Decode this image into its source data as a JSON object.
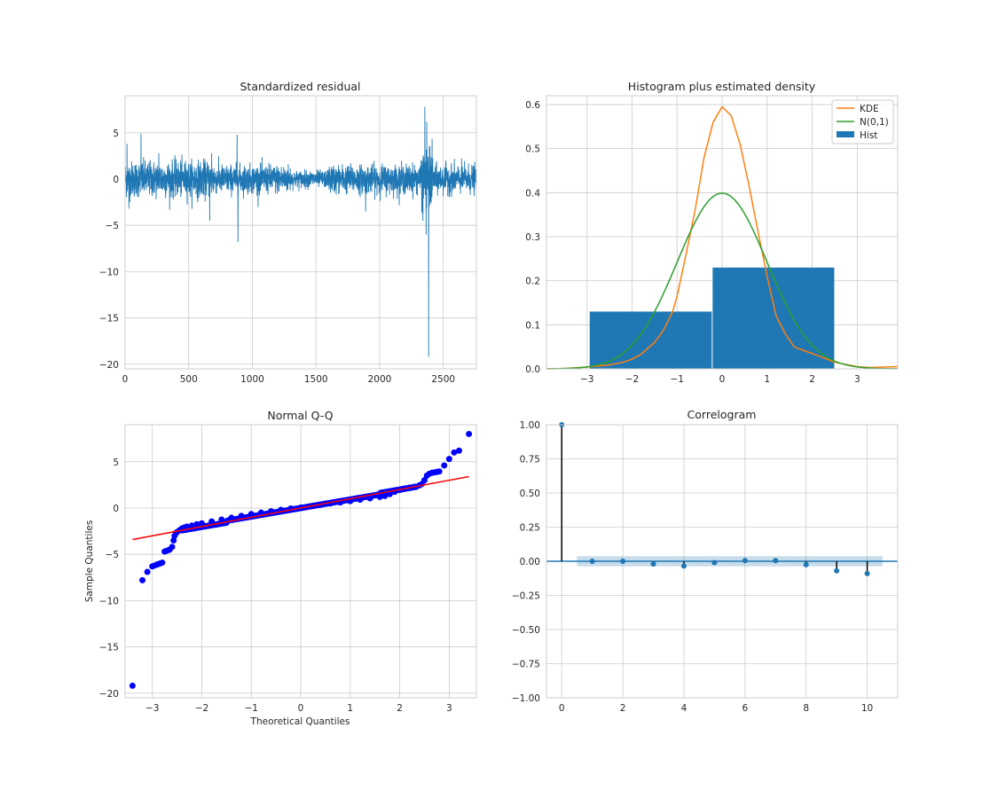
{
  "chart_data": [
    {
      "id": "resid",
      "type": "line",
      "title": "Standardized residual",
      "xlabel": "",
      "ylabel": "",
      "xlim": [
        0,
        2760
      ],
      "ylim": [
        -20.5,
        9
      ],
      "xticks": [
        0,
        500,
        1000,
        1500,
        2000,
        2500
      ],
      "xtick_labels": [
        "0",
        "500",
        "1000",
        "1500",
        "2000",
        "2500"
      ],
      "yticks": [
        5,
        0,
        -5,
        -10,
        -15,
        -20
      ],
      "ytick_labels": [
        "5",
        "0",
        "−5",
        "−10",
        "−15",
        "−20"
      ],
      "grid": true,
      "series": [
        {
          "color": "#1f77b4",
          "n_points": 2760,
          "typical_amplitude": 1.0,
          "spikes": [
            {
              "x": 15,
              "y": 3.8
            },
            {
              "x": 30,
              "y": -3.2
            },
            {
              "x": 125,
              "y": 4.9
            },
            {
              "x": 265,
              "y": 2.8
            },
            {
              "x": 665,
              "y": -4.5
            },
            {
              "x": 680,
              "y": 2.8
            },
            {
              "x": 880,
              "y": 4.8
            },
            {
              "x": 887,
              "y": -6.8
            },
            {
              "x": 1890,
              "y": -3.5
            },
            {
              "x": 2340,
              "y": -4.5
            },
            {
              "x": 2355,
              "y": 7.8
            },
            {
              "x": 2365,
              "y": -6.0
            },
            {
              "x": 2370,
              "y": 6.2
            },
            {
              "x": 2385,
              "y": -19.2
            },
            {
              "x": 2395,
              "y": 3.5
            }
          ]
        }
      ]
    },
    {
      "id": "hist",
      "type": "bar",
      "title": "Histogram plus estimated density",
      "xlabel": "",
      "ylabel": "",
      "xlim": [
        -3.9,
        3.9
      ],
      "ylim": [
        0,
        0.62
      ],
      "xticks": [
        -3,
        -2,
        -1,
        0,
        1,
        2,
        3
      ],
      "xtick_labels": [
        "−3",
        "−2",
        "−1",
        "0",
        "1",
        "2",
        "3"
      ],
      "yticks": [
        0.0,
        0.1,
        0.2,
        0.3,
        0.4,
        0.5,
        0.6
      ],
      "ytick_labels": [
        "0.0",
        "0.1",
        "0.2",
        "0.3",
        "0.4",
        "0.5",
        "0.6"
      ],
      "grid": true,
      "legend_position": "top-right",
      "bars": {
        "name": "Hist",
        "color": "#1f77b4",
        "bins": [
          {
            "x0": -2.95,
            "x1": -0.22,
            "height": 0.13
          },
          {
            "x0": -0.22,
            "x1": 2.5,
            "height": 0.23
          }
        ]
      },
      "series": [
        {
          "name": "KDE",
          "color": "#ff7f0e",
          "x": [
            -3.9,
            -3.5,
            -3.0,
            -2.8,
            -2.5,
            -2.2,
            -2.0,
            -1.8,
            -1.5,
            -1.3,
            -1.1,
            -1.0,
            -0.8,
            -0.6,
            -0.4,
            -0.2,
            0.0,
            0.1,
            0.2,
            0.4,
            0.6,
            0.8,
            1.0,
            1.2,
            1.4,
            1.6,
            1.8,
            2.0,
            2.2,
            2.5,
            2.8,
            3.0,
            3.3,
            3.6,
            3.9
          ],
          "y": [
            0.0,
            0.001,
            0.004,
            0.006,
            0.009,
            0.015,
            0.022,
            0.033,
            0.06,
            0.088,
            0.13,
            0.165,
            0.26,
            0.36,
            0.48,
            0.56,
            0.595,
            0.585,
            0.575,
            0.51,
            0.415,
            0.31,
            0.21,
            0.12,
            0.08,
            0.05,
            0.042,
            0.035,
            0.027,
            0.015,
            0.009,
            0.005,
            0.003,
            0.004,
            0.005
          ]
        },
        {
          "name": "N(0,1)",
          "color": "#2ca02c",
          "distribution": "normal",
          "mean": 0,
          "sd": 1
        }
      ]
    },
    {
      "id": "qq",
      "type": "scatter",
      "title": "Normal Q-Q",
      "xlabel": "Theoretical Quantiles",
      "ylabel": "Sample Quantiles",
      "xlim": [
        -3.55,
        3.55
      ],
      "ylim": [
        -20.5,
        9
      ],
      "xticks": [
        -3,
        -2,
        -1,
        0,
        1,
        2,
        3
      ],
      "xtick_labels": [
        "−3",
        "−2",
        "−1",
        "0",
        "1",
        "2",
        "3"
      ],
      "yticks": [
        5,
        0,
        -5,
        -10,
        -15,
        -20
      ],
      "ytick_labels": [
        "5",
        "0",
        "−5",
        "−10",
        "−15",
        "−20"
      ],
      "grid": true,
      "points_color": "#0000ff",
      "line_color": "#ff0000",
      "reference_line": {
        "x": [
          -3.4,
          3.4
        ],
        "y": [
          -3.4,
          3.4
        ]
      },
      "points": {
        "x": [
          -3.4,
          -3.2,
          -3.1,
          -3.0,
          -2.95,
          -2.9,
          -2.85,
          -2.8,
          -2.75,
          -2.7,
          -2.65,
          -2.6,
          -2.57,
          -2.55,
          -2.52,
          -2.5,
          -2.45,
          -2.4,
          -2.35,
          -2.3,
          -2.2,
          -2.1,
          -2.0,
          -1.8,
          -1.6,
          -1.4,
          -1.2,
          -1.0,
          -0.8,
          -0.6,
          -0.4,
          -0.2,
          0.0,
          0.2,
          0.4,
          0.6,
          0.8,
          1.0,
          1.2,
          1.4,
          1.6,
          1.7,
          1.8,
          1.9,
          2.0,
          2.1,
          2.2,
          2.3,
          2.4,
          2.45,
          2.5,
          2.55,
          2.6,
          2.65,
          2.7,
          2.75,
          2.8,
          2.9,
          3.0,
          3.1,
          3.2,
          3.4
        ],
        "y": [
          -19.2,
          -7.8,
          -6.9,
          -6.3,
          -6.2,
          -6.1,
          -6.0,
          -5.9,
          -4.7,
          -4.6,
          -4.5,
          -4.2,
          -3.5,
          -3.0,
          -2.7,
          -2.6,
          -2.4,
          -2.2,
          -2.1,
          -2.0,
          -1.9,
          -1.75,
          -1.65,
          -1.45,
          -1.25,
          -1.05,
          -0.85,
          -0.65,
          -0.5,
          -0.35,
          -0.2,
          -0.05,
          0.05,
          0.2,
          0.35,
          0.5,
          0.6,
          0.75,
          0.9,
          1.05,
          1.2,
          1.3,
          1.5,
          1.75,
          1.95,
          2.1,
          2.2,
          2.3,
          2.45,
          2.6,
          3.0,
          3.5,
          3.7,
          3.8,
          3.85,
          3.9,
          3.95,
          4.6,
          5.3,
          6.0,
          6.2,
          8.0
        ]
      }
    },
    {
      "id": "acf",
      "type": "stem",
      "title": "Correlogram",
      "xlabel": "",
      "ylabel": "",
      "xlim": [
        -0.5,
        11
      ],
      "ylim": [
        -1.0,
        1.0
      ],
      "xticks": [
        0,
        2,
        4,
        6,
        8,
        10
      ],
      "xtick_labels": [
        "0",
        "2",
        "4",
        "6",
        "8",
        "10"
      ],
      "yticks": [
        1.0,
        0.75,
        0.5,
        0.25,
        0.0,
        -0.25,
        -0.5,
        -0.75,
        -1.0
      ],
      "ytick_labels": [
        "1.00",
        "0.75",
        "0.50",
        "0.25",
        "0.00",
        "−0.25",
        "−0.50",
        "−0.75",
        "−1.00"
      ],
      "grid": true,
      "color": "#1f77b4",
      "confidence_band": {
        "x0": 0.5,
        "x1": 10.5,
        "y0": -0.037,
        "y1": 0.037
      },
      "lags": [
        0,
        1,
        2,
        3,
        4,
        5,
        6,
        7,
        8,
        9,
        10
      ],
      "values": [
        1.0,
        0.0,
        0.0,
        -0.02,
        -0.035,
        -0.01,
        0.005,
        0.005,
        -0.025,
        -0.07,
        -0.09
      ]
    }
  ]
}
